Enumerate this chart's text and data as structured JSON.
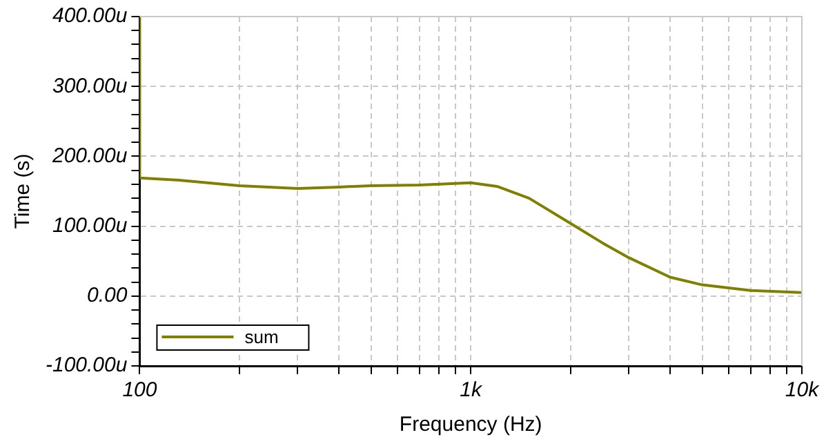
{
  "chart_data": {
    "type": "line",
    "xlabel": "Frequency (Hz)",
    "ylabel": "Time (s)",
    "log": "x",
    "grid": true,
    "legend": "bottom left",
    "marker": "none",
    "line_style": "solid",
    "xlim": [
      100,
      10000
    ],
    "xticks": [
      {
        "value": 100,
        "label": "100"
      },
      {
        "value": 200,
        "label": null
      },
      {
        "value": 300,
        "label": null
      },
      {
        "value": 400,
        "label": null
      },
      {
        "value": 500,
        "label": null
      },
      {
        "value": 600,
        "label": null
      },
      {
        "value": 700,
        "label": null
      },
      {
        "value": 800,
        "label": null
      },
      {
        "value": 900,
        "label": null
      },
      {
        "value": 1000,
        "label": "1k"
      },
      {
        "value": 2000,
        "label": null
      },
      {
        "value": 3000,
        "label": null
      },
      {
        "value": 4000,
        "label": null
      },
      {
        "value": 5000,
        "label": null
      },
      {
        "value": 6000,
        "label": null
      },
      {
        "value": 7000,
        "label": null
      },
      {
        "value": 8000,
        "label": null
      },
      {
        "value": 9000,
        "label": null
      },
      {
        "value": 10000,
        "label": "10k"
      }
    ],
    "ylim": [
      -100,
      400
    ],
    "yticks": [
      {
        "value": -100,
        "label": "-100.00u"
      },
      {
        "value": -80,
        "label": null
      },
      {
        "value": -60,
        "label": null
      },
      {
        "value": -40,
        "label": null
      },
      {
        "value": -20,
        "label": null
      },
      {
        "value": 0,
        "label": "0.00"
      },
      {
        "value": 20,
        "label": null
      },
      {
        "value": 40,
        "label": null
      },
      {
        "value": 60,
        "label": null
      },
      {
        "value": 80,
        "label": null
      },
      {
        "value": 100,
        "label": "100.00u"
      },
      {
        "value": 120,
        "label": null
      },
      {
        "value": 140,
        "label": null
      },
      {
        "value": 160,
        "label": null
      },
      {
        "value": 180,
        "label": null
      },
      {
        "value": 200,
        "label": "200.00u"
      },
      {
        "value": 220,
        "label": null
      },
      {
        "value": 240,
        "label": null
      },
      {
        "value": 260,
        "label": null
      },
      {
        "value": 280,
        "label": null
      },
      {
        "value": 300,
        "label": "300.00u"
      },
      {
        "value": 320,
        "label": null
      },
      {
        "value": 340,
        "label": null
      },
      {
        "value": 360,
        "label": null
      },
      {
        "value": 380,
        "label": null
      },
      {
        "value": 400,
        "label": "400.00u"
      }
    ],
    "series": [
      {
        "name": "sum",
        "color": "#808000",
        "x": [
          100,
          100,
          130,
          200,
          300,
          400,
          500,
          700,
          1000,
          1200,
          1500,
          2000,
          2500,
          3000,
          4000,
          5000,
          7000,
          10000
        ],
        "values": [
          400,
          169,
          166,
          158,
          154,
          156,
          158,
          159,
          162,
          157,
          140,
          104,
          76,
          55,
          27,
          16,
          8,
          5
        ]
      }
    ]
  }
}
